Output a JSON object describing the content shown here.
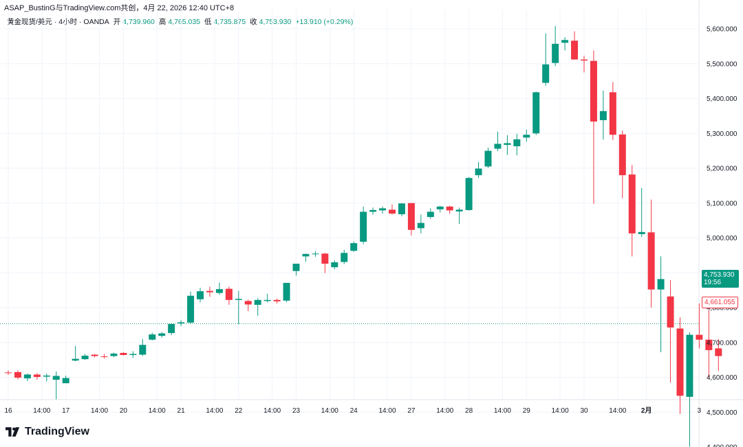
{
  "header": {
    "shared_by": "ASAP_BustinG与TradingView.com共创，4月 22, 2026 12:40 UTC+8",
    "symbol_line": "黄金现货/美元 · 4小时 · OANDA",
    "open_label": "开",
    "open_value": "4,739.960",
    "high_label": "高",
    "high_value": "4,765.035",
    "low_label": "低",
    "low_value": "4,735.875",
    "close_label": "收",
    "close_value": "4,753.930",
    "change": "+13.910 (+0.29%)"
  },
  "price_tags": {
    "last_price": "4,753.930",
    "countdown": "19:56",
    "second_price": "4,661.055"
  },
  "brand": {
    "name": "TradingView"
  },
  "colors": {
    "up": "#089981",
    "down": "#f23645",
    "grid": "#f0f3fa",
    "axis_text": "#131722",
    "last_line": "#089981"
  },
  "chart_data": {
    "type": "candlestick",
    "ylim": [
      4350,
      5650
    ],
    "y_ticks": [
      {
        "value": 5600,
        "label": "5,600.000"
      },
      {
        "value": 5500,
        "label": "5,500.000"
      },
      {
        "value": 5400,
        "label": "5,400.000"
      },
      {
        "value": 5300,
        "label": "5,300.000"
      },
      {
        "value": 5200,
        "label": "5,200.000"
      },
      {
        "value": 5100,
        "label": "5,100.000"
      },
      {
        "value": 5000,
        "label": "5,000.000"
      },
      {
        "value": 4900,
        "label": "4,900.000"
      },
      {
        "value": 4800,
        "label": "4,800.000"
      },
      {
        "value": 4700,
        "label": "4,700.000"
      },
      {
        "value": 4600,
        "label": "4,600.000"
      },
      {
        "value": 4500,
        "label": "4,500.000"
      },
      {
        "value": 4400,
        "label": "4,400.000"
      }
    ],
    "x_ticks": [
      {
        "bar": 0,
        "label": "16",
        "bold": false
      },
      {
        "bar": 3.5,
        "label": "14:00",
        "bold": false
      },
      {
        "bar": 6,
        "label": "17",
        "bold": false
      },
      {
        "bar": 9.5,
        "label": "14:00",
        "bold": false
      },
      {
        "bar": 12,
        "label": "20",
        "bold": false
      },
      {
        "bar": 15.5,
        "label": "14:00",
        "bold": false
      },
      {
        "bar": 18,
        "label": "21",
        "bold": false
      },
      {
        "bar": 21.5,
        "label": "14:00",
        "bold": false
      },
      {
        "bar": 24,
        "label": "22",
        "bold": false
      },
      {
        "bar": 27.5,
        "label": "14:00",
        "bold": false
      },
      {
        "bar": 30,
        "label": "23",
        "bold": false
      },
      {
        "bar": 33.5,
        "label": "14:00",
        "bold": false
      },
      {
        "bar": 36,
        "label": "24",
        "bold": false
      },
      {
        "bar": 39.5,
        "label": "14:00",
        "bold": false
      },
      {
        "bar": 42,
        "label": "27",
        "bold": false
      },
      {
        "bar": 45.5,
        "label": "14:00",
        "bold": false
      },
      {
        "bar": 48,
        "label": "28",
        "bold": false
      },
      {
        "bar": 51.5,
        "label": "14:00",
        "bold": false
      },
      {
        "bar": 54,
        "label": "29",
        "bold": false
      },
      {
        "bar": 57.5,
        "label": "14:00",
        "bold": false
      },
      {
        "bar": 60,
        "label": "30",
        "bold": false
      },
      {
        "bar": 63.5,
        "label": "14:00",
        "bold": false
      },
      {
        "bar": 66.5,
        "label": "2月",
        "bold": true
      },
      {
        "bar": 72,
        "label": "3",
        "bold": false
      }
    ],
    "last_price": 4753.93,
    "candles": [
      {
        "o": 4614,
        "h": 4620,
        "l": 4607,
        "c": 4612
      },
      {
        "o": 4615,
        "h": 4620,
        "l": 4594,
        "c": 4599
      },
      {
        "o": 4597,
        "h": 4611,
        "l": 4589,
        "c": 4608
      },
      {
        "o": 4608,
        "h": 4612,
        "l": 4593,
        "c": 4601
      },
      {
        "o": 4602,
        "h": 4611,
        "l": 4588,
        "c": 4605
      },
      {
        "o": 4593,
        "h": 4617,
        "l": 4537,
        "c": 4604
      },
      {
        "o": 4583,
        "h": 4605,
        "l": 4583,
        "c": 4598
      },
      {
        "o": 4648,
        "h": 4690,
        "l": 4646,
        "c": 4653
      },
      {
        "o": 4652,
        "h": 4667,
        "l": 4650,
        "c": 4662
      },
      {
        "o": 4665,
        "h": 4667,
        "l": 4657,
        "c": 4661
      },
      {
        "o": 4660,
        "h": 4667,
        "l": 4654,
        "c": 4659
      },
      {
        "o": 4661,
        "h": 4671,
        "l": 4658,
        "c": 4668
      },
      {
        "o": 4670,
        "h": 4672,
        "l": 4663,
        "c": 4664
      },
      {
        "o": 4664,
        "h": 4675,
        "l": 4656,
        "c": 4667
      },
      {
        "o": 4665,
        "h": 4710,
        "l": 4661,
        "c": 4693
      },
      {
        "o": 4708,
        "h": 4728,
        "l": 4706,
        "c": 4723
      },
      {
        "o": 4719,
        "h": 4730,
        "l": 4714,
        "c": 4726
      },
      {
        "o": 4727,
        "h": 4755,
        "l": 4721,
        "c": 4753
      },
      {
        "o": 4755,
        "h": 4764,
        "l": 4747,
        "c": 4758
      },
      {
        "o": 4757,
        "h": 4846,
        "l": 4754,
        "c": 4834
      },
      {
        "o": 4824,
        "h": 4857,
        "l": 4815,
        "c": 4847
      },
      {
        "o": 4848,
        "h": 4860,
        "l": 4831,
        "c": 4844
      },
      {
        "o": 4842,
        "h": 4872,
        "l": 4837,
        "c": 4853
      },
      {
        "o": 4854,
        "h": 4860,
        "l": 4808,
        "c": 4822
      },
      {
        "o": 4822,
        "h": 4848,
        "l": 4752,
        "c": 4825
      },
      {
        "o": 4819,
        "h": 4823,
        "l": 4790,
        "c": 4809
      },
      {
        "o": 4808,
        "h": 4827,
        "l": 4777,
        "c": 4822
      },
      {
        "o": 4819,
        "h": 4840,
        "l": 4815,
        "c": 4822
      },
      {
        "o": 4822,
        "h": 4826,
        "l": 4812,
        "c": 4818
      },
      {
        "o": 4820,
        "h": 4871,
        "l": 4816,
        "c": 4871
      },
      {
        "o": 4905,
        "h": 4926,
        "l": 4892,
        "c": 4926
      },
      {
        "o": 4947,
        "h": 4955,
        "l": 4932,
        "c": 4954
      },
      {
        "o": 4953,
        "h": 4962,
        "l": 4946,
        "c": 4955
      },
      {
        "o": 4955,
        "h": 4957,
        "l": 4899,
        "c": 4926
      },
      {
        "o": 4916,
        "h": 4936,
        "l": 4910,
        "c": 4930
      },
      {
        "o": 4931,
        "h": 4966,
        "l": 4925,
        "c": 4957
      },
      {
        "o": 4963,
        "h": 4990,
        "l": 4960,
        "c": 4985
      },
      {
        "o": 4989,
        "h": 5090,
        "l": 4982,
        "c": 5075
      },
      {
        "o": 5075,
        "h": 5087,
        "l": 5067,
        "c": 5080
      },
      {
        "o": 5079,
        "h": 5090,
        "l": 5070,
        "c": 5085
      },
      {
        "o": 5081,
        "h": 5096,
        "l": 5067,
        "c": 5070
      },
      {
        "o": 5068,
        "h": 5100,
        "l": 5062,
        "c": 5099
      },
      {
        "o": 5100,
        "h": 5100,
        "l": 5007,
        "c": 5023
      },
      {
        "o": 5028,
        "h": 5067,
        "l": 5013,
        "c": 5043
      },
      {
        "o": 5060,
        "h": 5085,
        "l": 5055,
        "c": 5075
      },
      {
        "o": 5082,
        "h": 5092,
        "l": 5073,
        "c": 5090
      },
      {
        "o": 5090,
        "h": 5092,
        "l": 5069,
        "c": 5079
      },
      {
        "o": 5076,
        "h": 5087,
        "l": 5040,
        "c": 5081
      },
      {
        "o": 5080,
        "h": 5175,
        "l": 5078,
        "c": 5172
      },
      {
        "o": 5180,
        "h": 5218,
        "l": 5172,
        "c": 5199
      },
      {
        "o": 5205,
        "h": 5259,
        "l": 5201,
        "c": 5250
      },
      {
        "o": 5256,
        "h": 5305,
        "l": 5249,
        "c": 5270
      },
      {
        "o": 5267,
        "h": 5295,
        "l": 5238,
        "c": 5272
      },
      {
        "o": 5263,
        "h": 5299,
        "l": 5237,
        "c": 5283
      },
      {
        "o": 5288,
        "h": 5311,
        "l": 5276,
        "c": 5296
      },
      {
        "o": 5300,
        "h": 5420,
        "l": 5295,
        "c": 5418
      },
      {
        "o": 5445,
        "h": 5587,
        "l": 5437,
        "c": 5498
      },
      {
        "o": 5502,
        "h": 5608,
        "l": 5493,
        "c": 5557
      },
      {
        "o": 5560,
        "h": 5576,
        "l": 5538,
        "c": 5568
      },
      {
        "o": 5566,
        "h": 5593,
        "l": 5512,
        "c": 5512
      },
      {
        "o": 5512,
        "h": 5523,
        "l": 5475,
        "c": 5509
      },
      {
        "o": 5508,
        "h": 5538,
        "l": 5098,
        "c": 5334
      },
      {
        "o": 5338,
        "h": 5423,
        "l": 5282,
        "c": 5364
      },
      {
        "o": 5418,
        "h": 5447,
        "l": 5281,
        "c": 5296
      },
      {
        "o": 5297,
        "h": 5308,
        "l": 5114,
        "c": 5180
      },
      {
        "o": 5182,
        "h": 5209,
        "l": 4947,
        "c": 5013
      },
      {
        "o": 5011,
        "h": 5143,
        "l": 5003,
        "c": 5017
      },
      {
        "o": 5016,
        "h": 5110,
        "l": 4800,
        "c": 4852
      },
      {
        "o": 4852,
        "h": 4947,
        "l": 4672,
        "c": 4882
      },
      {
        "o": 4832,
        "h": 4879,
        "l": 4585,
        "c": 4743
      },
      {
        "o": 4740,
        "h": 4772,
        "l": 4495,
        "c": 4547
      },
      {
        "o": 4544,
        "h": 4729,
        "l": 4401,
        "c": 4722
      },
      {
        "o": 4722,
        "h": 4812,
        "l": 4683,
        "c": 4708
      },
      {
        "o": 4708,
        "h": 4793,
        "l": 4598,
        "c": 4678
      },
      {
        "o": 4683,
        "h": 4710,
        "l": 4618,
        "c": 4661
      }
    ]
  }
}
